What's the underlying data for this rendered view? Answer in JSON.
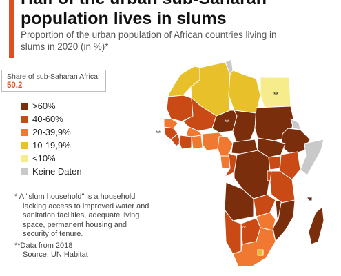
{
  "title": "Half of the urban sub-Saharan population lives in slums",
  "subtitle": "Proportion of the urban population of African countries living in slums in 2020 (in %)*",
  "share": {
    "label": "Share of sub-Saharan Africa:",
    "value": "50.2"
  },
  "legend": [
    {
      "label": ">60%",
      "color": "#7a2e0c"
    },
    {
      "label": "40-60%",
      "color": "#c94a15"
    },
    {
      "label": "20-39,9%",
      "color": "#f07830"
    },
    {
      "label": "10-19,9%",
      "color": "#e8c12a"
    },
    {
      "label": "<10%",
      "color": "#f7ec8c"
    },
    {
      "label": "Keine Daten",
      "color": "#c9c9c9"
    }
  ],
  "footnotes": {
    "slum": "* A \"slum household\" is a household lacking access to improved water and sanitation facilities, adequate living space, permanent housing and security of tenure.",
    "data": "**Data from 2018",
    "source": "Source: UN Habitat"
  },
  "map_marks": {
    "egypt": "**",
    "niger": "**",
    "west": "**",
    "indian_ocean": "**",
    "south_west": "**"
  },
  "colors": {
    "accent": "#e0501f",
    "border": "#ffffff"
  }
}
